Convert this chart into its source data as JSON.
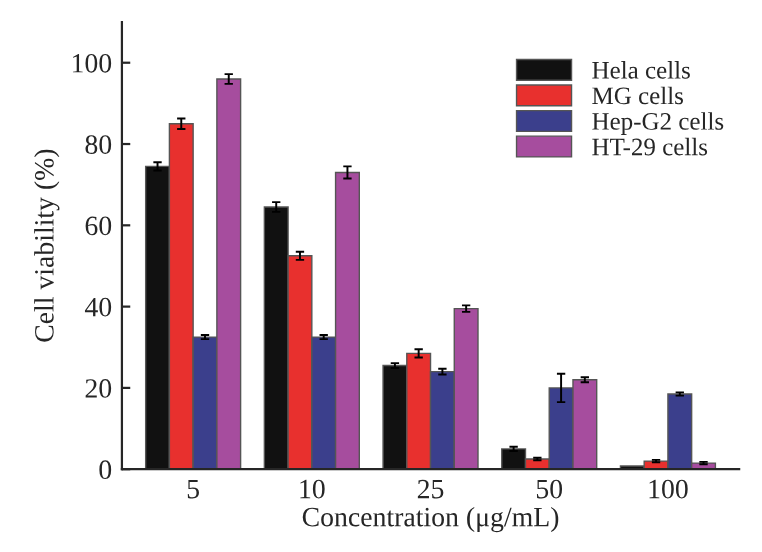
{
  "chart_data": {
    "type": "bar",
    "xlabel": "Concentration (μg/mL)",
    "ylabel": "Cell viability (%)",
    "categories": [
      "5",
      "10",
      "25",
      "50",
      "100"
    ],
    "series": [
      {
        "name": "Hela cells",
        "color": "#111111",
        "values": [
          74.5,
          64.5,
          25.5,
          5,
          0.8
        ],
        "errors": [
          1,
          1.2,
          0.6,
          0.5,
          null
        ]
      },
      {
        "name": "MG cells",
        "color": "#e8302e",
        "values": [
          85,
          52.5,
          28.5,
          2.5,
          2
        ],
        "errors": [
          1.3,
          1,
          1,
          0.3,
          0.3
        ]
      },
      {
        "name": "Hep-G2 cells",
        "color": "#3b3f8c",
        "values": [
          32.5,
          32.5,
          24,
          20,
          18.5
        ],
        "errors": [
          0.5,
          0.5,
          0.7,
          3.5,
          0.4
        ]
      },
      {
        "name": "HT-29 cells",
        "color": "#a64d9e",
        "values": [
          96,
          73,
          39.5,
          22,
          1.5
        ],
        "errors": [
          1.2,
          1.5,
          0.8,
          0.6,
          0.3
        ]
      }
    ],
    "ylim": [
      0,
      110
    ],
    "yticks": [
      0,
      20,
      40,
      60,
      80,
      100
    ],
    "grid": false,
    "legend": "top right"
  }
}
